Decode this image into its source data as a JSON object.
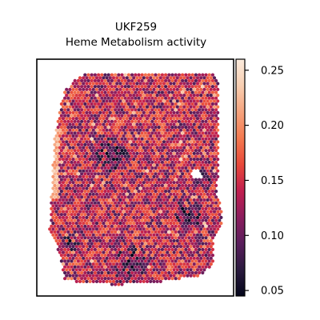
{
  "chart_data": {
    "type": "heatmap",
    "title": "UKF259",
    "subtitle": "Heme Metabolism activity",
    "xlabel": "",
    "ylabel": "",
    "colorbar": {
      "colormap": "rocket",
      "range": [
        0.045,
        0.26
      ],
      "ticks": [
        {
          "value": 0.25,
          "label": "0.25"
        },
        {
          "value": 0.2,
          "label": "0.20"
        },
        {
          "value": 0.15,
          "label": "0.15"
        },
        {
          "value": 0.1,
          "label": "0.10"
        },
        {
          "value": 0.05,
          "label": "0.05"
        }
      ],
      "stops": [
        "#03051a",
        "#2b1b3f",
        "#5a1e5c",
        "#8c1d5d",
        "#c21f4f",
        "#e8493a",
        "#f47a50",
        "#f6a47e",
        "#f8cfb2",
        "#faebdd"
      ]
    },
    "grid": false,
    "legend": "colorbar-right"
  }
}
